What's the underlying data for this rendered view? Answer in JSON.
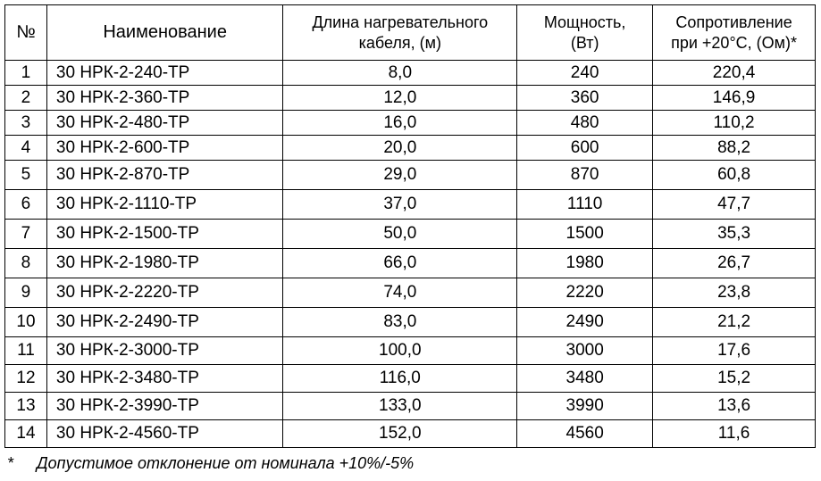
{
  "headers": [
    "№",
    "Наименование",
    "Длина нагревательного кабеля, (м)",
    "Мощность, (Вт)",
    "Сопротивление при +20°C, (Ом)*"
  ],
  "rows": [
    [
      "1",
      "30 НРК-2-240-ТР",
      "8,0",
      "240",
      "220,4"
    ],
    [
      "2",
      "30 НРК-2-360-ТР",
      "12,0",
      "360",
      "146,9"
    ],
    [
      "3",
      "30 НРК-2-480-ТР",
      "16,0",
      "480",
      "110,2"
    ],
    [
      "4",
      "30 НРК-2-600-ТР",
      "20,0",
      "600",
      "88,2"
    ],
    [
      "5",
      "30 НРК-2-870-ТР",
      "29,0",
      "870",
      "60,8"
    ],
    [
      "6",
      "30 НРК-2-1110-ТР",
      "37,0",
      "1110",
      "47,7"
    ],
    [
      "7",
      "30 НРК-2-1500-ТР",
      "50,0",
      "1500",
      "35,3"
    ],
    [
      "8",
      "30 НРК-2-1980-ТР",
      "66,0",
      "1980",
      "26,7"
    ],
    [
      "9",
      "30 НРК-2-2220-ТР",
      "74,0",
      "2220",
      "23,8"
    ],
    [
      "10",
      "30 НРК-2-2490-ТР",
      "83,0",
      "2490",
      "21,2"
    ],
    [
      "11",
      "30 НРК-2-3000-ТР",
      "100,0",
      "3000",
      "17,6"
    ],
    [
      "12",
      "30 НРК-2-3480-ТР",
      "116,0",
      "3480",
      "15,2"
    ],
    [
      "13",
      "30 НРК-2-3990-ТР",
      "133,0",
      "3990",
      "13,6"
    ],
    [
      "14",
      "30 НРК-2-4560-ТР",
      "152,0",
      "4560",
      "11,6"
    ]
  ],
  "footnote": {
    "marker": "*",
    "text": "Допустимое отклонение от номинала +10%/-5%"
  }
}
